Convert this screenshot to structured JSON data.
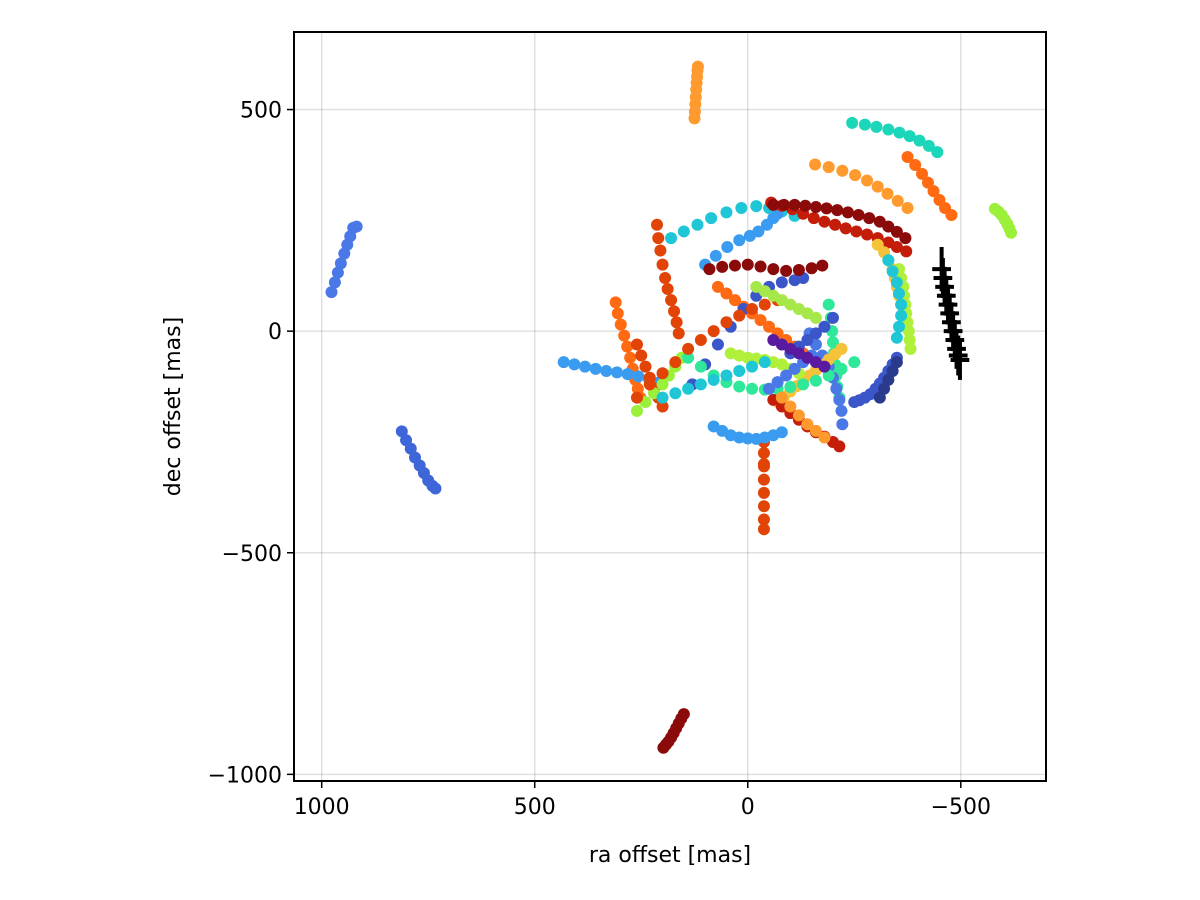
{
  "chart_data": {
    "type": "scatter",
    "xlabel": "ra offset [mas]",
    "ylabel": "dec offset [mas]",
    "x_reversed": true,
    "xlim": [
      1065,
      -700
    ],
    "ylim": [
      -1015,
      675
    ],
    "xticks": [
      1000,
      500,
      0,
      -500
    ],
    "xtick_labels": [
      "1000",
      "500",
      "0",
      "−500"
    ],
    "yticks": [
      500,
      0,
      -500,
      -1000
    ],
    "ytick_labels": [
      "500",
      "0",
      "−500",
      "−1000"
    ],
    "grid": true,
    "legend": "none",
    "series": [
      {
        "color": "#4a78e6",
        "x": [
          977,
          969,
          962,
          955,
          947,
          940,
          933,
          926,
          918
        ],
        "y": [
          88,
          110,
          132,
          153,
          175,
          195,
          214,
          233,
          236
        ]
      },
      {
        "color": "#3f66d9",
        "x": [
          812,
          802,
          791,
          781,
          770,
          760,
          750,
          740,
          733
        ],
        "y": [
          -226,
          -246,
          -265,
          -285,
          -303,
          -320,
          -337,
          -349,
          -355
        ]
      },
      {
        "color": "#ff9a2e",
        "x": [
          125,
          124,
          123,
          122,
          121,
          120,
          119,
          118,
          117
        ],
        "y": [
          480,
          495,
          512,
          528,
          545,
          560,
          574,
          588,
          597
        ]
      },
      {
        "color": "#1bd6b8",
        "x": [
          -245,
          -275,
          -302,
          -330,
          -356,
          -380,
          -403,
          -425,
          -445
        ],
        "y": [
          470,
          466,
          461,
          455,
          448,
          440,
          430,
          418,
          404
        ]
      },
      {
        "color": "#ff9a2e",
        "x": [
          -158,
          -190,
          -222,
          -252,
          -280,
          -305,
          -328,
          -352,
          -375
        ],
        "y": [
          376,
          370,
          362,
          352,
          340,
          326,
          310,
          294,
          278
        ]
      },
      {
        "color": "#ff6a12",
        "x": [
          -375,
          -393,
          -409,
          -423,
          -436,
          -450,
          -463,
          -478
        ],
        "y": [
          393,
          375,
          355,
          335,
          316,
          296,
          278,
          262
        ]
      },
      {
        "color": "#9bf03a",
        "x": [
          -580,
          -588,
          -596,
          -603,
          -609,
          -614,
          -618
        ],
        "y": [
          276,
          270,
          262,
          252,
          242,
          232,
          222
        ]
      },
      {
        "color": "#e24408",
        "x": [
          -38,
          -38,
          -38,
          -38,
          -38,
          -38,
          -38,
          -38,
          -38,
          -38
        ],
        "y": [
          -245,
          -275,
          -305,
          -335,
          -365,
          -395,
          -425,
          -447,
          -300,
          -250
        ]
      },
      {
        "color": "#8b0a0a",
        "x": [
          198,
          192,
          186,
          180,
          174,
          168,
          162,
          156,
          150
        ],
        "y": [
          -940,
          -933,
          -926,
          -917,
          -907,
          -896,
          -885,
          -874,
          -864
        ]
      },
      {
        "color": "#e24408",
        "x": [
          213,
          210,
          205,
          200,
          194,
          188,
          180,
          173,
          167,
          162
        ],
        "y": [
          240,
          210,
          182,
          150,
          120,
          95,
          70,
          45,
          20,
          -5
        ]
      },
      {
        "color": "#ff6a12",
        "x": [
          310,
          305,
          298,
          290,
          283,
          276,
          270,
          264,
          258,
          252
        ],
        "y": [
          65,
          40,
          15,
          -10,
          -35,
          -60,
          -85,
          -110,
          -130,
          -150
        ]
      },
      {
        "color": "#3a9cf0",
        "x": [
          432,
          407,
          382,
          357,
          332,
          307,
          282,
          257,
          232,
          207
        ],
        "y": [
          -70,
          -75,
          -80,
          -85,
          -90,
          -93,
          -97,
          -102,
          -108,
          -115
        ]
      },
      {
        "color": "#1fc7d6",
        "x": [
          180,
          150,
          118,
          86,
          50,
          15,
          -20,
          -50,
          -80,
          -110
        ],
        "y": [
          210,
          225,
          240,
          255,
          268,
          278,
          282,
          278,
          270,
          260
        ]
      },
      {
        "color": "#3a9cf0",
        "x": [
          100,
          75,
          48,
          20,
          -5,
          -25,
          -45,
          -60,
          -70
        ],
        "y": [
          150,
          170,
          190,
          205,
          215,
          225,
          240,
          255,
          265
        ]
      },
      {
        "color": "#c41e0a",
        "x": [
          -55,
          -80,
          -105,
          -130,
          -155,
          -180,
          -205,
          -230,
          -255,
          -280,
          -305,
          -330,
          -350,
          -372
        ],
        "y": [
          290,
          283,
          275,
          265,
          255,
          247,
          240,
          232,
          225,
          218,
          210,
          200,
          190,
          180
        ]
      },
      {
        "color": "#8b0a0a",
        "x": [
          -60,
          -85,
          -110,
          -135,
          -160,
          -185,
          -210,
          -235,
          -260,
          -285,
          -310,
          -330,
          -350,
          -370
        ],
        "y": [
          285,
          285,
          285,
          283,
          280,
          277,
          273,
          268,
          262,
          255,
          247,
          236,
          224,
          210
        ]
      },
      {
        "color": "#f5c23a",
        "x": [
          -305,
          -320,
          -330,
          -340,
          -345,
          -350,
          -355,
          -360,
          -365,
          -370
        ],
        "y": [
          195,
          178,
          160,
          140,
          120,
          100,
          80,
          60,
          40,
          20
        ]
      },
      {
        "color": "#b0f03a",
        "x": [
          -355,
          -360,
          -365,
          -367,
          -370,
          -372,
          -375,
          -378,
          -380,
          -382
        ],
        "y": [
          140,
          120,
          100,
          80,
          60,
          40,
          20,
          0,
          -20,
          -40
        ]
      },
      {
        "color": "#2fe89a",
        "x": [
          -190,
          -195,
          -198,
          -200,
          -202,
          -205,
          -208,
          -210,
          -215
        ],
        "y": [
          60,
          30,
          0,
          -25,
          -50,
          -75,
          -100,
          -125,
          -150
        ]
      },
      {
        "color": "#1fc7d6",
        "x": [
          -330,
          -340,
          -350,
          -355,
          -360,
          -360,
          -355,
          -350
        ],
        "y": [
          160,
          135,
          110,
          85,
          60,
          35,
          10,
          -15
        ]
      },
      {
        "color": "#3a56c8",
        "x": [
          -350,
          -340,
          -330,
          -320,
          -310,
          -300,
          -288,
          -275,
          -262,
          -250
        ],
        "y": [
          -60,
          -75,
          -90,
          -105,
          -118,
          -130,
          -142,
          -150,
          -156,
          -160
        ]
      },
      {
        "color": "#4a78e6",
        "x": [
          -145,
          -160,
          -175,
          -190,
          -200,
          -208,
          -215,
          -220,
          -222
        ],
        "y": [
          -5,
          -30,
          -55,
          -80,
          -105,
          -130,
          -155,
          -180,
          -210
        ]
      },
      {
        "color": "#f5c23a",
        "x": [
          -220,
          -205,
          -190,
          -175,
          -160,
          -145,
          -130,
          -115,
          -100,
          -85,
          -70
        ],
        "y": [
          -40,
          -52,
          -64,
          -76,
          -88,
          -100,
          -112,
          -124,
          -136,
          -148,
          -160
        ]
      },
      {
        "color": "#ff6a12",
        "x": [
          70,
          50,
          30,
          10,
          -10,
          -30,
          -50,
          -70,
          -90,
          -110,
          -130
        ],
        "y": [
          100,
          85,
          70,
          55,
          40,
          25,
          10,
          -5,
          -20,
          -35,
          -50
        ]
      },
      {
        "color": "#c41e0a",
        "x": [
          -60,
          -80,
          -100,
          -120,
          -140,
          -160,
          -180,
          -200,
          -215
        ],
        "y": [
          -155,
          -170,
          -185,
          -200,
          -215,
          -228,
          -238,
          -250,
          -260
        ]
      },
      {
        "color": "#3a9cf0",
        "x": [
          80,
          60,
          40,
          20,
          0,
          -20,
          -40,
          -60,
          -80
        ],
        "y": [
          -215,
          -225,
          -235,
          -240,
          -242,
          -243,
          -240,
          -235,
          -228
        ]
      },
      {
        "color": "#e24408",
        "x": [
          260,
          250,
          240,
          230,
          220,
          210,
          200
        ],
        "y": [
          -30,
          -55,
          -80,
          -105,
          -130,
          -150,
          -170
        ]
      },
      {
        "color": "#9bf03a",
        "x": [
          260,
          240,
          220,
          200,
          185,
          170,
          155
        ],
        "y": [
          -180,
          -160,
          -140,
          -120,
          -100,
          -80,
          -60
        ]
      },
      {
        "color": "#b0f03a",
        "x": [
          40,
          20,
          0,
          -20,
          -40,
          -60,
          -80,
          -100,
          -120
        ],
        "y": [
          -50,
          -55,
          -60,
          -62,
          -65,
          -70,
          -75,
          -85,
          -95
        ]
      },
      {
        "color": "#3a56c8",
        "x": [
          130,
          100,
          70,
          40,
          10,
          -20,
          -50,
          -80,
          -110,
          -130
        ],
        "y": [
          -120,
          -75,
          -30,
          10,
          50,
          80,
          100,
          110,
          115,
          120
        ]
      },
      {
        "color": "#8b0a0a",
        "x": [
          90,
          60,
          30,
          0,
          -30,
          -60,
          -90,
          -120,
          -150,
          -175
        ],
        "y": [
          140,
          145,
          148,
          150,
          146,
          140,
          136,
          138,
          142,
          148
        ]
      },
      {
        "color": "#2fe89a",
        "x": [
          140,
          110,
          80,
          50,
          20,
          -10,
          -40,
          -70,
          -100,
          -130,
          -160,
          -190,
          -220,
          -250
        ],
        "y": [
          -60,
          -80,
          -100,
          -115,
          -125,
          -130,
          -132,
          -130,
          -126,
          -120,
          -112,
          -100,
          -85,
          -70
        ]
      },
      {
        "color": "#1fc7d6",
        "x": [
          200,
          170,
          140,
          110,
          80,
          50,
          20,
          -10,
          -40
        ],
        "y": [
          -150,
          -140,
          -130,
          -120,
          -110,
          -100,
          -90,
          -80,
          -70
        ]
      },
      {
        "color": "#e24408",
        "x": [
          260,
          230,
          200,
          170,
          140,
          110,
          80,
          50,
          20,
          -10,
          -40,
          -70
        ],
        "y": [
          -150,
          -120,
          -95,
          -70,
          -40,
          -20,
          0,
          20,
          35,
          50,
          60,
          70
        ]
      },
      {
        "color": "#ff9a2e",
        "x": [
          -80,
          -100,
          -120,
          -140,
          -160,
          -180
        ],
        "y": [
          -150,
          -170,
          -190,
          -210,
          -225,
          -240
        ]
      },
      {
        "color": "#a6e84a",
        "x": [
          -20,
          -40,
          -60,
          -80,
          -100,
          -120,
          -140,
          -160
        ],
        "y": [
          100,
          90,
          80,
          70,
          60,
          50,
          40,
          30
        ]
      },
      {
        "color": "#4a78e6",
        "x": [
          -50,
          -70,
          -90,
          -110,
          -130,
          -150
        ],
        "y": [
          -130,
          -115,
          -100,
          -85,
          -70,
          -55
        ]
      },
      {
        "color": "#3a56c8",
        "x": [
          -100,
          -120,
          -140,
          -160,
          -180,
          -200
        ],
        "y": [
          -50,
          -35,
          -20,
          -5,
          10,
          30
        ]
      },
      {
        "color": "#5a1aa0",
        "x": [
          -60,
          -80,
          -100,
          -120,
          -140,
          -160,
          -180
        ],
        "y": [
          -20,
          -30,
          -40,
          -50,
          -60,
          -70,
          -80
        ]
      },
      {
        "color": "#2a3a8c",
        "x": [
          -310,
          -320,
          -330,
          -340,
          -350
        ],
        "y": [
          -150,
          -130,
          -110,
          -90,
          -70
        ]
      }
    ],
    "error_bars": {
      "color": "#000000",
      "x": [
        -455,
        -458,
        -462,
        -466,
        -470,
        -474,
        -478,
        -482,
        -486,
        -490,
        -494,
        -498
      ],
      "y": [
        140,
        120,
        100,
        80,
        60,
        40,
        20,
        0,
        -20,
        -40,
        -55,
        -65
      ],
      "xerr": [
        22,
        22,
        22,
        22,
        22,
        22,
        22,
        22,
        22,
        22,
        22,
        22
      ],
      "yerr": [
        50,
        45,
        45,
        45,
        45,
        45,
        45,
        45,
        45,
        45,
        45,
        45
      ]
    }
  }
}
